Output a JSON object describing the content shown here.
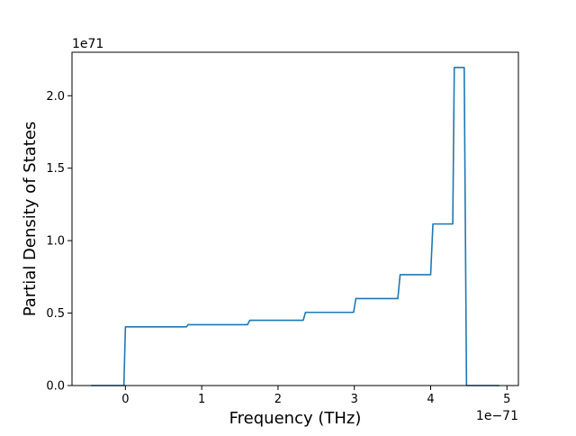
{
  "chart_data": {
    "type": "line",
    "title": "",
    "xlabel": "Frequency (THz)",
    "ylabel": "Partial Density of States",
    "x_offset_label": "1e−71",
    "y_offset_label": "1e71",
    "xlim": [
      -0.7,
      5.15
    ],
    "ylim": [
      0.0,
      2.3
    ],
    "x_ticks": [
      0,
      1,
      2,
      3,
      4,
      5
    ],
    "x_tick_labels": [
      "0",
      "1",
      "2",
      "3",
      "4",
      "5"
    ],
    "y_ticks": [
      0.0,
      0.5,
      1.0,
      1.5,
      2.0
    ],
    "y_tick_labels": [
      "0.0",
      "0.5",
      "1.0",
      "1.5",
      "2.0"
    ],
    "grid": false,
    "series": [
      {
        "color": "#1f77b4",
        "x": [
          -0.45,
          -0.02,
          0.0,
          0.8,
          0.82,
          1.6,
          1.63,
          2.33,
          2.36,
          2.99,
          3.02,
          3.57,
          3.6,
          4.0,
          4.03,
          4.29,
          4.31,
          4.44,
          4.47,
          4.9
        ],
        "y": [
          0.0,
          0.0,
          0.405,
          0.405,
          0.42,
          0.42,
          0.45,
          0.45,
          0.505,
          0.505,
          0.6,
          0.6,
          0.765,
          0.765,
          1.115,
          1.115,
          2.195,
          2.195,
          0.0,
          0.0
        ]
      }
    ]
  }
}
